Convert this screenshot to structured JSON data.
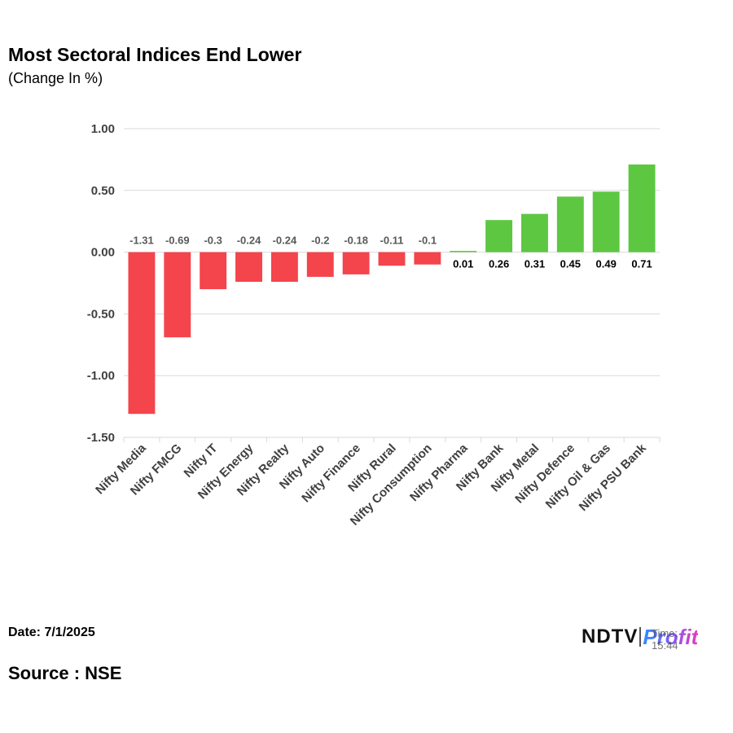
{
  "header": {
    "title": "Most Sectoral Indices End Lower",
    "subtitle": "(Change In %)"
  },
  "footer": {
    "date": "Date: 7/1/2025",
    "source": "Source : NSE",
    "logo_ndtv": "NDTV",
    "logo_profit": "Profit",
    "logo_time": "Time: 15:44"
  },
  "colors": {
    "negative": "#f4444c",
    "positive": "#5dc742",
    "grid": "#d9d9d9",
    "text": "#000000",
    "label_negative": "#595959"
  },
  "chart_data": {
    "type": "bar",
    "title": "Most Sectoral Indices End Lower",
    "subtitle": "(Change In %)",
    "categories": [
      "Nifty Media",
      "Nifty FMCG",
      "Nifty IT",
      "Nifty Energy",
      "Nifty Realty",
      "Nifty Auto",
      "Nifty Finance",
      "Nifty Rural",
      "Nifty Consumption",
      "Nifty Pharma",
      "Nifty Bank",
      "Nifty Metal",
      "Nifty Defence",
      "Nifty Oil & Gas",
      "Nifty PSU Bank"
    ],
    "values": [
      -1.31,
      -0.69,
      -0.3,
      -0.24,
      -0.24,
      -0.2,
      -0.18,
      -0.11,
      -0.1,
      0.01,
      0.26,
      0.31,
      0.45,
      0.49,
      0.71
    ],
    "value_labels": [
      "-1.31",
      "-0.69",
      "-0.3",
      "-0.24",
      "-0.24",
      "-0.2",
      "-0.18",
      "-0.11",
      "-0.1",
      "0.01",
      "0.26",
      "0.31",
      "0.45",
      "0.49",
      "0.71"
    ],
    "yticks": [
      1.0,
      0.5,
      0.0,
      -0.5,
      -1.0,
      -1.5
    ],
    "ytick_labels": [
      "1.00",
      "0.50",
      "0.00",
      "-0.50",
      "-1.00",
      "-1.50"
    ],
    "ylim": [
      -1.5,
      1.0
    ],
    "grid": true,
    "legend": "none"
  }
}
